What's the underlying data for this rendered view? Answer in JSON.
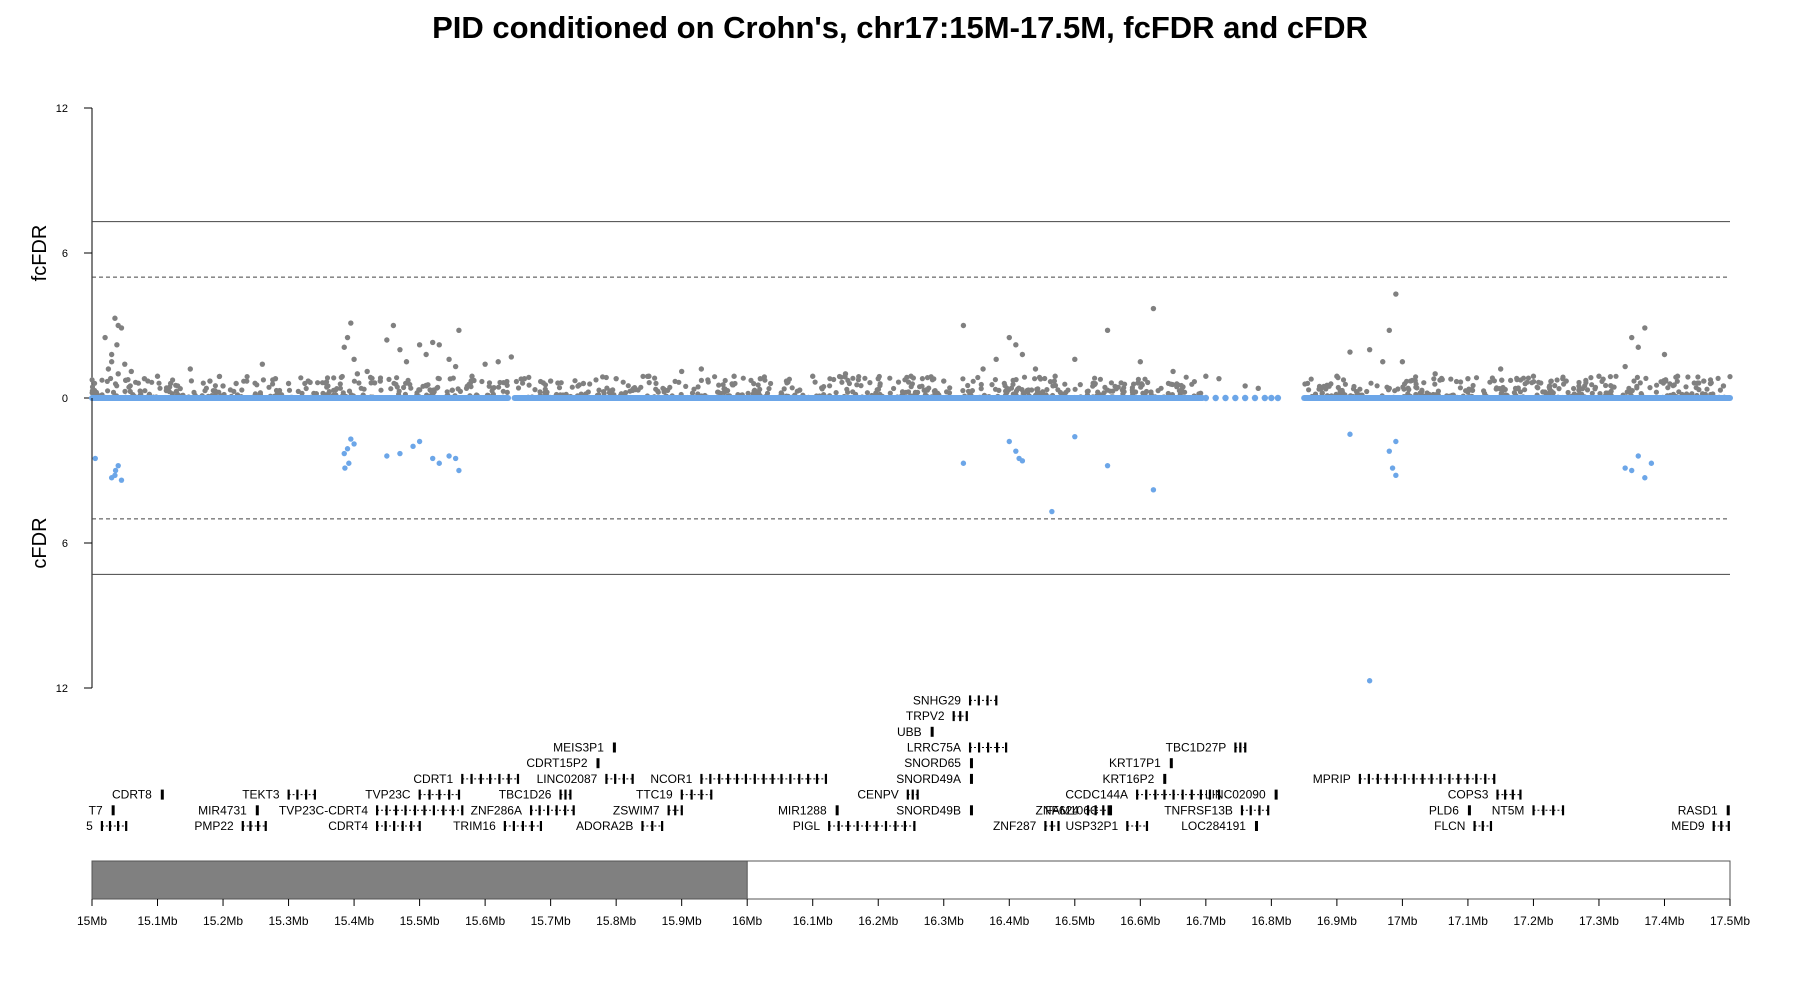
{
  "title": "PID conditioned on Crohn's, chr17:15M-17.5M, fcFDR and cFDR",
  "chart_data": {
    "type": "scatter",
    "colors": {
      "fcfdr": "#808080",
      "cfdr": "#6CA6E8",
      "gene": "#000000",
      "line": "#000000"
    },
    "top_panel": {
      "ylabel": "fcFDR",
      "yticks": [
        0,
        6,
        12
      ],
      "ylim": [
        0,
        12
      ],
      "solid_threshold": 7.3,
      "dashed_threshold": 5,
      "points_Mb": [
        [
          15.02,
          2.5
        ],
        [
          15.03,
          1.8
        ],
        [
          15.035,
          3.3
        ],
        [
          15.04,
          3.0
        ],
        [
          15.045,
          2.9
        ],
        [
          15.038,
          2.2
        ],
        [
          15.03,
          1.5
        ],
        [
          15.025,
          1.2
        ],
        [
          15.04,
          1.0
        ],
        [
          15.05,
          1.4
        ],
        [
          15.06,
          1.1
        ],
        [
          15.08,
          0.8
        ],
        [
          15.1,
          0.9
        ],
        [
          15.12,
          0.6
        ],
        [
          15.15,
          1.2
        ],
        [
          15.18,
          0.7
        ],
        [
          15.2,
          0.5
        ],
        [
          15.22,
          0.6
        ],
        [
          15.26,
          1.4
        ],
        [
          15.28,
          0.8
        ],
        [
          15.3,
          0.6
        ],
        [
          15.33,
          0.7
        ],
        [
          15.36,
          0.5
        ],
        [
          15.385,
          2.1
        ],
        [
          15.39,
          2.5
        ],
        [
          15.395,
          3.1
        ],
        [
          15.4,
          1.6
        ],
        [
          15.405,
          1.0
        ],
        [
          15.42,
          1.1
        ],
        [
          15.44,
          0.7
        ],
        [
          15.45,
          2.4
        ],
        [
          15.46,
          3.0
        ],
        [
          15.47,
          2.0
        ],
        [
          15.48,
          1.5
        ],
        [
          15.5,
          2.2
        ],
        [
          15.51,
          1.8
        ],
        [
          15.52,
          2.3
        ],
        [
          15.53,
          2.2
        ],
        [
          15.545,
          1.6
        ],
        [
          15.555,
          1.3
        ],
        [
          15.56,
          2.8
        ],
        [
          15.58,
          0.9
        ],
        [
          15.6,
          1.4
        ],
        [
          15.62,
          1.5
        ],
        [
          15.64,
          1.7
        ],
        [
          15.66,
          0.8
        ],
        [
          15.7,
          0.7
        ],
        [
          15.75,
          0.6
        ],
        [
          15.8,
          0.8
        ],
        [
          15.85,
          0.9
        ],
        [
          15.9,
          1.1
        ],
        [
          15.93,
          1.2
        ],
        [
          15.98,
          0.9
        ],
        [
          16.02,
          0.8
        ],
        [
          16.06,
          0.7
        ],
        [
          16.1,
          0.9
        ],
        [
          16.15,
          1.0
        ],
        [
          16.2,
          0.8
        ],
        [
          16.25,
          0.9
        ],
        [
          16.3,
          0.7
        ],
        [
          16.33,
          3.0
        ],
        [
          16.36,
          1.2
        ],
        [
          16.38,
          1.6
        ],
        [
          16.4,
          2.5
        ],
        [
          16.41,
          2.2
        ],
        [
          16.42,
          1.8
        ],
        [
          16.44,
          1.2
        ],
        [
          16.47,
          0.9
        ],
        [
          16.5,
          1.6
        ],
        [
          16.55,
          2.8
        ],
        [
          16.6,
          1.5
        ],
        [
          16.62,
          3.7
        ],
        [
          16.65,
          1.1
        ],
        [
          16.7,
          0.9
        ],
        [
          16.72,
          0.8
        ],
        [
          16.76,
          0.5
        ],
        [
          16.78,
          0.4
        ],
        [
          16.9,
          0.9
        ],
        [
          16.92,
          1.9
        ],
        [
          16.95,
          2.0
        ],
        [
          16.97,
          1.5
        ],
        [
          16.98,
          2.8
        ],
        [
          16.99,
          4.3
        ],
        [
          17.0,
          1.5
        ],
        [
          17.05,
          1.0
        ],
        [
          17.1,
          0.8
        ],
        [
          17.15,
          1.2
        ],
        [
          17.2,
          0.9
        ],
        [
          17.25,
          0.7
        ],
        [
          17.3,
          0.9
        ],
        [
          17.34,
          1.3
        ],
        [
          17.35,
          2.5
        ],
        [
          17.36,
          2.1
        ],
        [
          17.37,
          2.9
        ],
        [
          17.4,
          1.8
        ],
        [
          17.42,
          0.9
        ],
        [
          17.46,
          0.7
        ],
        [
          17.49,
          0.5
        ]
      ],
      "baseline_gaps_Mb": [
        [
          15.635,
          15.645
        ],
        [
          16.695,
          16.85
        ]
      ]
    },
    "bottom_panel": {
      "ylabel": "cFDR",
      "yticks": [
        6,
        12
      ],
      "ylim": [
        0,
        12
      ],
      "solid_threshold": 7.3,
      "dashed_threshold": 5,
      "points_Mb": [
        [
          15.005,
          2.5
        ],
        [
          15.035,
          3.2
        ],
        [
          15.036,
          3.0
        ],
        [
          15.04,
          2.8
        ],
        [
          15.045,
          3.4
        ],
        [
          15.03,
          3.3
        ],
        [
          15.385,
          2.3
        ],
        [
          15.39,
          2.1
        ],
        [
          15.395,
          1.7
        ],
        [
          15.4,
          1.9
        ],
        [
          15.392,
          2.7
        ],
        [
          15.386,
          2.9
        ],
        [
          15.45,
          2.4
        ],
        [
          15.47,
          2.3
        ],
        [
          15.49,
          2.0
        ],
        [
          15.5,
          1.8
        ],
        [
          15.52,
          2.5
        ],
        [
          15.53,
          2.7
        ],
        [
          15.545,
          2.4
        ],
        [
          15.555,
          2.5
        ],
        [
          15.56,
          3.0
        ],
        [
          16.33,
          2.7
        ],
        [
          16.4,
          1.8
        ],
        [
          16.41,
          2.2
        ],
        [
          16.415,
          2.5
        ],
        [
          16.42,
          2.6
        ],
        [
          16.465,
          4.7
        ],
        [
          16.5,
          1.6
        ],
        [
          16.55,
          2.8
        ],
        [
          16.62,
          3.8
        ],
        [
          16.92,
          1.5
        ],
        [
          16.95,
          11.7
        ],
        [
          16.98,
          2.2
        ],
        [
          16.99,
          1.8
        ],
        [
          16.985,
          2.9
        ],
        [
          16.99,
          3.2
        ],
        [
          17.34,
          2.9
        ],
        [
          17.35,
          3.0
        ],
        [
          17.36,
          2.4
        ],
        [
          17.37,
          3.3
        ],
        [
          17.38,
          2.7
        ]
      ],
      "baseline_gaps_Mb": [
        [
          15.635,
          15.645
        ],
        [
          16.695,
          16.85
        ]
      ]
    },
    "genes": [
      {
        "name": "CDRT8",
        "start": 15.105,
        "end": 15.108,
        "row": 5
      },
      {
        "name": "T7",
        "start": 15.03,
        "end": 15.033,
        "row": 6
      },
      {
        "name": "5",
        "start": 15.015,
        "end": 15.052,
        "row": 7
      },
      {
        "name": "TEKT3",
        "start": 15.3,
        "end": 15.34,
        "row": 5
      },
      {
        "name": "MIR4731",
        "start": 15.25,
        "end": 15.253,
        "row": 6
      },
      {
        "name": "PMP22",
        "start": 15.23,
        "end": 15.265,
        "row": 7
      },
      {
        "name": "TVP23C",
        "start": 15.5,
        "end": 15.56,
        "row": 5
      },
      {
        "name": "TVP23C-CDRT4",
        "start": 15.435,
        "end": 15.565,
        "row": 6
      },
      {
        "name": "CDRT4",
        "start": 15.435,
        "end": 15.5,
        "row": 7
      },
      {
        "name": "CDRT1",
        "start": 15.565,
        "end": 15.65,
        "row": 4
      },
      {
        "name": "TRIM16",
        "start": 15.63,
        "end": 15.685,
        "row": 7
      },
      {
        "name": "ZNF286A",
        "start": 15.67,
        "end": 15.735,
        "row": 6
      },
      {
        "name": "TBC1D26",
        "start": 15.715,
        "end": 15.73,
        "row": 5
      },
      {
        "name": "CDRT15P2",
        "start": 15.77,
        "end": 15.773,
        "row": 3
      },
      {
        "name": "LINC02087",
        "start": 15.785,
        "end": 15.825,
        "row": 4
      },
      {
        "name": "MEIS3P1",
        "start": 15.795,
        "end": 15.8,
        "row": 2
      },
      {
        "name": "NCOR1",
        "start": 15.93,
        "end": 16.12,
        "row": 4
      },
      {
        "name": "TTC19",
        "start": 15.9,
        "end": 15.945,
        "row": 5
      },
      {
        "name": "ZSWIM7",
        "start": 15.88,
        "end": 15.9,
        "row": 6
      },
      {
        "name": "ADORA2B",
        "start": 15.84,
        "end": 15.87,
        "row": 7
      },
      {
        "name": "MIR1288",
        "start": 16.135,
        "end": 16.138,
        "row": 6
      },
      {
        "name": "PIGL",
        "start": 16.125,
        "end": 16.255,
        "row": 7
      },
      {
        "name": "CENPV",
        "start": 16.245,
        "end": 16.26,
        "row": 5
      },
      {
        "name": "SNORD49B",
        "start": 16.34,
        "end": 16.343,
        "row": 6
      },
      {
        "name": "SNORD49A",
        "start": 16.34,
        "end": 16.343,
        "row": 4
      },
      {
        "name": "SNORD65",
        "start": 16.34,
        "end": 16.343,
        "row": 3
      },
      {
        "name": "LRRC75A",
        "start": 16.34,
        "end": 16.395,
        "row": 2
      },
      {
        "name": "UBB",
        "start": 16.28,
        "end": 16.285,
        "row": 1
      },
      {
        "name": "TRPV2",
        "start": 16.315,
        "end": 16.335,
        "row": 0
      },
      {
        "name": "SNHG29",
        "start": 16.34,
        "end": 16.38,
        "row": -1
      },
      {
        "name": "ZNF624",
        "start": 16.52,
        "end": 16.555,
        "row": 6
      },
      {
        "name": "ZNF287",
        "start": 16.455,
        "end": 16.475,
        "row": 7
      },
      {
        "name": "CCDC144A",
        "start": 16.595,
        "end": 16.72,
        "row": 5
      },
      {
        "name": "FAM106C",
        "start": 16.55,
        "end": 16.553,
        "row": 6
      },
      {
        "name": "USP32P1",
        "start": 16.58,
        "end": 16.61,
        "row": 7
      },
      {
        "name": "KRT16P2",
        "start": 16.635,
        "end": 16.64,
        "row": 4
      },
      {
        "name": "KRT17P1",
        "start": 16.645,
        "end": 16.65,
        "row": 3
      },
      {
        "name": "TBC1D27P",
        "start": 16.745,
        "end": 16.76,
        "row": 2
      },
      {
        "name": "TNFRSF13B",
        "start": 16.755,
        "end": 16.795,
        "row": 6
      },
      {
        "name": "LOC284191",
        "start": 16.775,
        "end": 16.78,
        "row": 7
      },
      {
        "name": "LINC02090",
        "start": 16.805,
        "end": 16.808,
        "row": 5
      },
      {
        "name": "MPRIP",
        "start": 16.935,
        "end": 17.14,
        "row": 4
      },
      {
        "name": "COPS3",
        "start": 17.145,
        "end": 17.18,
        "row": 5
      },
      {
        "name": "PLD6",
        "start": 17.1,
        "end": 17.105,
        "row": 6
      },
      {
        "name": "FLCN",
        "start": 17.11,
        "end": 17.135,
        "row": 7
      },
      {
        "name": "NT5M",
        "start": 17.2,
        "end": 17.245,
        "row": 6
      },
      {
        "name": "RASD1",
        "start": 17.495,
        "end": 17.498,
        "row": 6
      },
      {
        "name": "MED9",
        "start": 17.475,
        "end": 17.498,
        "row": 7
      }
    ],
    "axis": {
      "xticks": [
        "15Mb",
        "15.1Mb",
        "15.2Mb",
        "15.3Mb",
        "15.4Mb",
        "15.5Mb",
        "15.6Mb",
        "15.7Mb",
        "15.8Mb",
        "15.9Mb",
        "16Mb",
        "16.1Mb",
        "16.2Mb",
        "16.3Mb",
        "16.4Mb",
        "16.5Mb",
        "16.6Mb",
        "16.7Mb",
        "16.8Mb",
        "16.9Mb",
        "17Mb",
        "17.1Mb",
        "17.2Mb",
        "17.3Mb",
        "17.4Mb",
        "17.5Mb"
      ],
      "xlim_Mb": [
        15,
        17.5
      ],
      "highlight_Mb": [
        15,
        16
      ]
    }
  }
}
